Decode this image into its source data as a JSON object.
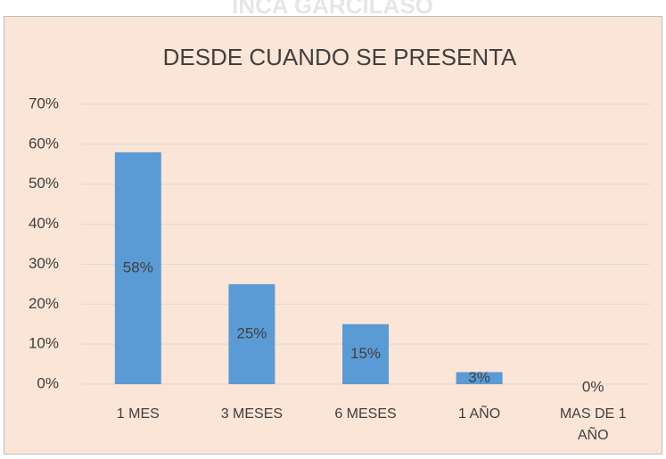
{
  "watermark": "INCA GARCILASO",
  "chart_data": {
    "type": "bar",
    "title": "DESDE CUANDO SE PRESENTA",
    "categories": [
      "1 MES",
      "3 MESES",
      "6 MESES",
      "1 AÑO",
      "MAS DE 1 AÑO"
    ],
    "values": [
      58,
      25,
      15,
      3,
      0
    ],
    "value_labels": [
      "58%",
      "25%",
      "15%",
      "3%",
      "0%"
    ],
    "color": "#5b9bd5",
    "ylim": [
      0,
      70
    ],
    "yticks": [
      {
        "value": 0,
        "label": "0%"
      },
      {
        "value": 10,
        "label": "10%"
      },
      {
        "value": 20,
        "label": "20%"
      },
      {
        "value": 30,
        "label": "30%"
      },
      {
        "value": 40,
        "label": "40%"
      },
      {
        "value": 50,
        "label": "50%"
      },
      {
        "value": 60,
        "label": "60%"
      },
      {
        "value": 70,
        "label": "70%"
      }
    ],
    "grid": true
  }
}
